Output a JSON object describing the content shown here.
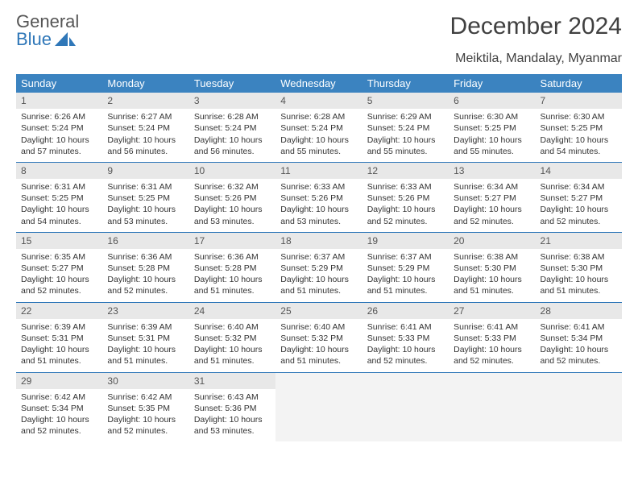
{
  "logo": {
    "line1": "General",
    "line2": "Blue"
  },
  "title": "December 2024",
  "location": "Meiktila, Mandalay, Myanmar",
  "colors": {
    "header_bg": "#3b83c0",
    "header_text": "#ffffff",
    "daynum_bg": "#e8e8e8",
    "border": "#2f77b8",
    "logo_blue": "#2f77b8",
    "text": "#333333"
  },
  "weekdays": [
    "Sunday",
    "Monday",
    "Tuesday",
    "Wednesday",
    "Thursday",
    "Friday",
    "Saturday"
  ],
  "days": [
    {
      "n": "1",
      "sunrise": "6:26 AM",
      "sunset": "5:24 PM",
      "dlh": "10",
      "dlm": "57"
    },
    {
      "n": "2",
      "sunrise": "6:27 AM",
      "sunset": "5:24 PM",
      "dlh": "10",
      "dlm": "56"
    },
    {
      "n": "3",
      "sunrise": "6:28 AM",
      "sunset": "5:24 PM",
      "dlh": "10",
      "dlm": "56"
    },
    {
      "n": "4",
      "sunrise": "6:28 AM",
      "sunset": "5:24 PM",
      "dlh": "10",
      "dlm": "55"
    },
    {
      "n": "5",
      "sunrise": "6:29 AM",
      "sunset": "5:24 PM",
      "dlh": "10",
      "dlm": "55"
    },
    {
      "n": "6",
      "sunrise": "6:30 AM",
      "sunset": "5:25 PM",
      "dlh": "10",
      "dlm": "55"
    },
    {
      "n": "7",
      "sunrise": "6:30 AM",
      "sunset": "5:25 PM",
      "dlh": "10",
      "dlm": "54"
    },
    {
      "n": "8",
      "sunrise": "6:31 AM",
      "sunset": "5:25 PM",
      "dlh": "10",
      "dlm": "54"
    },
    {
      "n": "9",
      "sunrise": "6:31 AM",
      "sunset": "5:25 PM",
      "dlh": "10",
      "dlm": "53"
    },
    {
      "n": "10",
      "sunrise": "6:32 AM",
      "sunset": "5:26 PM",
      "dlh": "10",
      "dlm": "53"
    },
    {
      "n": "11",
      "sunrise": "6:33 AM",
      "sunset": "5:26 PM",
      "dlh": "10",
      "dlm": "53"
    },
    {
      "n": "12",
      "sunrise": "6:33 AM",
      "sunset": "5:26 PM",
      "dlh": "10",
      "dlm": "52"
    },
    {
      "n": "13",
      "sunrise": "6:34 AM",
      "sunset": "5:27 PM",
      "dlh": "10",
      "dlm": "52"
    },
    {
      "n": "14",
      "sunrise": "6:34 AM",
      "sunset": "5:27 PM",
      "dlh": "10",
      "dlm": "52"
    },
    {
      "n": "15",
      "sunrise": "6:35 AM",
      "sunset": "5:27 PM",
      "dlh": "10",
      "dlm": "52"
    },
    {
      "n": "16",
      "sunrise": "6:36 AM",
      "sunset": "5:28 PM",
      "dlh": "10",
      "dlm": "52"
    },
    {
      "n": "17",
      "sunrise": "6:36 AM",
      "sunset": "5:28 PM",
      "dlh": "10",
      "dlm": "51"
    },
    {
      "n": "18",
      "sunrise": "6:37 AM",
      "sunset": "5:29 PM",
      "dlh": "10",
      "dlm": "51"
    },
    {
      "n": "19",
      "sunrise": "6:37 AM",
      "sunset": "5:29 PM",
      "dlh": "10",
      "dlm": "51"
    },
    {
      "n": "20",
      "sunrise": "6:38 AM",
      "sunset": "5:30 PM",
      "dlh": "10",
      "dlm": "51"
    },
    {
      "n": "21",
      "sunrise": "6:38 AM",
      "sunset": "5:30 PM",
      "dlh": "10",
      "dlm": "51"
    },
    {
      "n": "22",
      "sunrise": "6:39 AM",
      "sunset": "5:31 PM",
      "dlh": "10",
      "dlm": "51"
    },
    {
      "n": "23",
      "sunrise": "6:39 AM",
      "sunset": "5:31 PM",
      "dlh": "10",
      "dlm": "51"
    },
    {
      "n": "24",
      "sunrise": "6:40 AM",
      "sunset": "5:32 PM",
      "dlh": "10",
      "dlm": "51"
    },
    {
      "n": "25",
      "sunrise": "6:40 AM",
      "sunset": "5:32 PM",
      "dlh": "10",
      "dlm": "51"
    },
    {
      "n": "26",
      "sunrise": "6:41 AM",
      "sunset": "5:33 PM",
      "dlh": "10",
      "dlm": "52"
    },
    {
      "n": "27",
      "sunrise": "6:41 AM",
      "sunset": "5:33 PM",
      "dlh": "10",
      "dlm": "52"
    },
    {
      "n": "28",
      "sunrise": "6:41 AM",
      "sunset": "5:34 PM",
      "dlh": "10",
      "dlm": "52"
    },
    {
      "n": "29",
      "sunrise": "6:42 AM",
      "sunset": "5:34 PM",
      "dlh": "10",
      "dlm": "52"
    },
    {
      "n": "30",
      "sunrise": "6:42 AM",
      "sunset": "5:35 PM",
      "dlh": "10",
      "dlm": "52"
    },
    {
      "n": "31",
      "sunrise": "6:43 AM",
      "sunset": "5:36 PM",
      "dlh": "10",
      "dlm": "53"
    }
  ],
  "labels": {
    "sunrise": "Sunrise: ",
    "sunset": "Sunset: ",
    "daylight_pre": "Daylight: ",
    "hours_and": " hours and ",
    "minutes": " minutes."
  },
  "grid": {
    "cols": 7,
    "start_weekday": 0,
    "days_in_month": 31
  }
}
